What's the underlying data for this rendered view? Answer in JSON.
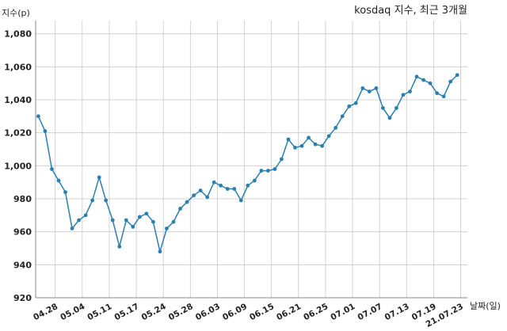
{
  "chart_data": {
    "type": "line",
    "title": "kosdaq 지수, 최근 3개월",
    "ylabel": "지수(p)",
    "xlabel": "날짜(일)",
    "ylim": [
      920,
      1088
    ],
    "yticks": [
      920,
      940,
      960,
      980,
      1000,
      1020,
      1040,
      1060,
      1080
    ],
    "ytick_labels": [
      "920",
      "940",
      "960",
      "980",
      "1,000",
      "1,020",
      "1,040",
      "1,060",
      "1,080"
    ],
    "xtick_labels": [
      "04.28",
      "05.04",
      "05.11",
      "05.17",
      "05.24",
      "05.28",
      "06.03",
      "06.09",
      "06.15",
      "06.21",
      "06.25",
      "07.01",
      "07.07",
      "07.13",
      "07.19",
      "21.07.23"
    ],
    "xtick_positions": [
      2.5,
      6.5,
      10.5,
      14.5,
      18.5,
      22.5,
      26.5,
      30.5,
      34.5,
      38.5,
      42.5,
      46.5,
      50.5,
      54.5,
      58.5,
      62.5
    ],
    "xlim": [
      -0.4,
      63.5
    ],
    "grid": true,
    "line_color": "#2a7fb0",
    "series": [
      {
        "values": [
          1030,
          1021,
          998,
          991,
          984,
          962,
          967,
          970,
          979,
          993,
          979,
          967,
          951,
          967,
          963,
          969,
          971,
          966,
          948,
          962,
          966,
          974,
          978,
          982,
          985,
          981,
          990,
          988,
          986,
          986,
          979,
          988,
          991,
          997,
          997,
          998,
          1004,
          1016,
          1011,
          1012,
          1017,
          1013,
          1012,
          1018,
          1023,
          1030,
          1036,
          1038,
          1047,
          1045,
          1047,
          1035,
          1029,
          1035,
          1043,
          1045,
          1054,
          1052,
          1050,
          1044,
          1042,
          1051,
          1055
        ]
      }
    ]
  }
}
